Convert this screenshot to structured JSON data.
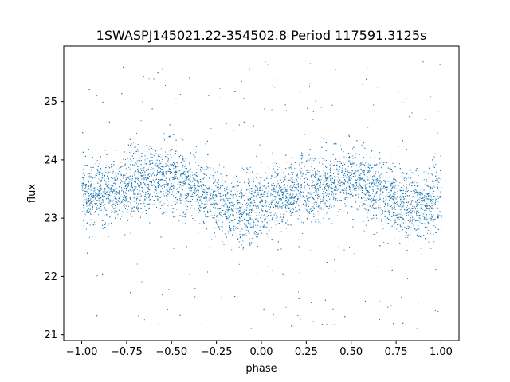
{
  "chart_data": {
    "type": "scatter",
    "title": "1SWASPJ145021.22-354502.8 Period 117591.3125s",
    "xlabel": "phase",
    "ylabel": "flux",
    "xlim": [
      -1.1,
      1.1
    ],
    "ylim": [
      20.9,
      25.95
    ],
    "xticks": [
      -1.0,
      -0.75,
      -0.5,
      -0.25,
      0.0,
      0.25,
      0.5,
      0.75,
      1.0
    ],
    "xtick_labels": [
      "−1.00",
      "−0.75",
      "−0.50",
      "−0.25",
      "0.00",
      "0.25",
      "0.50",
      "0.75",
      "1.00"
    ],
    "yticks": [
      21,
      22,
      23,
      24,
      25
    ],
    "ytick_labels": [
      "21",
      "22",
      "23",
      "24",
      "25"
    ],
    "grid": false,
    "legend": "none",
    "point_color": "#1f77b4",
    "series": [
      {
        "x": [
          -1.0,
          -0.9,
          -0.8,
          -0.7,
          -0.6,
          -0.5,
          -0.4,
          -0.3,
          -0.2,
          -0.1,
          0.0,
          0.1,
          0.2,
          0.3,
          0.4,
          0.5,
          0.6,
          0.7,
          0.8,
          0.9,
          1.0
        ],
        "y": [
          23.35,
          23.45,
          23.5,
          23.6,
          23.7,
          23.68,
          23.55,
          23.4,
          23.2,
          23.15,
          23.25,
          23.35,
          23.45,
          23.55,
          23.65,
          23.68,
          23.55,
          23.4,
          23.2,
          23.18,
          23.3
        ],
        "scatter": 0.28
      }
    ]
  }
}
